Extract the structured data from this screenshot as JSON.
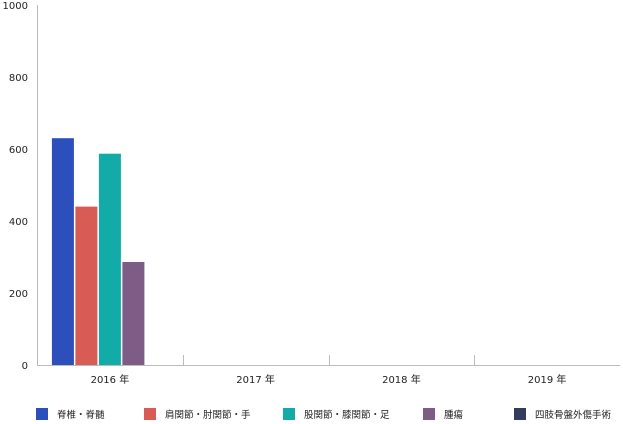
{
  "chart_data": {
    "type": "bar",
    "categories": [
      "2016 年",
      "2017 年",
      "2018 年",
      "2019 年"
    ],
    "ylim": [
      0,
      1000
    ],
    "yticks": [
      0,
      200,
      400,
      600,
      800,
      1000
    ],
    "grid": false,
    "legend_position": "bottom",
    "series": [
      {
        "name": "脊椎・脊髄",
        "color": "#2d4fbb",
        "values": [
          630,
          null,
          null,
          null
        ]
      },
      {
        "name": "肩関節・肘関節・手",
        "color": "#d95b55",
        "values": [
          440,
          null,
          null,
          null
        ]
      },
      {
        "name": "股関節・膝関節・足",
        "color": "#13aba8",
        "values": [
          587,
          null,
          null,
          null
        ]
      },
      {
        "name": "腫瘍",
        "color": "#7d5c85",
        "values": [
          286,
          null,
          null,
          null
        ]
      },
      {
        "name": "四肢骨盤外傷手術",
        "color": "#333c5c",
        "values": [
          null,
          null,
          null,
          null
        ]
      }
    ]
  }
}
